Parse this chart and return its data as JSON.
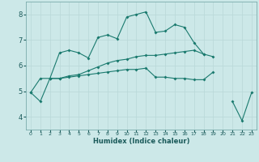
{
  "xlabel": "Humidex (Indice chaleur)",
  "background_color": "#cce8e8",
  "grid_color": "#b8d8d8",
  "line_color": "#1a7a6e",
  "x_ticks": [
    0,
    1,
    2,
    3,
    4,
    5,
    6,
    7,
    8,
    9,
    10,
    11,
    12,
    13,
    14,
    15,
    16,
    17,
    18,
    19,
    20,
    21,
    22,
    23
  ],
  "ylim": [
    3.5,
    8.5
  ],
  "xlim": [
    -0.5,
    23.5
  ],
  "y_ticks": [
    4,
    5,
    6,
    7,
    8
  ],
  "series": [
    [
      4.95,
      4.6,
      5.5,
      6.5,
      6.6,
      6.5,
      6.3,
      7.1,
      7.2,
      7.05,
      7.9,
      8.0,
      8.1,
      7.3,
      7.35,
      7.6,
      7.5,
      6.9,
      6.45,
      null,
      null,
      4.6,
      3.85,
      4.95
    ],
    [
      4.95,
      5.5,
      5.5,
      5.5,
      5.55,
      5.6,
      5.65,
      5.7,
      5.75,
      5.8,
      5.85,
      5.85,
      5.9,
      5.55,
      5.55,
      5.5,
      5.5,
      5.45,
      5.45,
      5.75,
      null,
      null,
      null,
      null
    ],
    [
      null,
      null,
      5.5,
      5.5,
      5.6,
      5.65,
      5.8,
      5.95,
      6.1,
      6.2,
      6.25,
      6.35,
      6.4,
      6.4,
      6.45,
      6.5,
      6.55,
      6.6,
      6.45,
      6.35,
      null,
      null,
      null,
      null
    ]
  ]
}
